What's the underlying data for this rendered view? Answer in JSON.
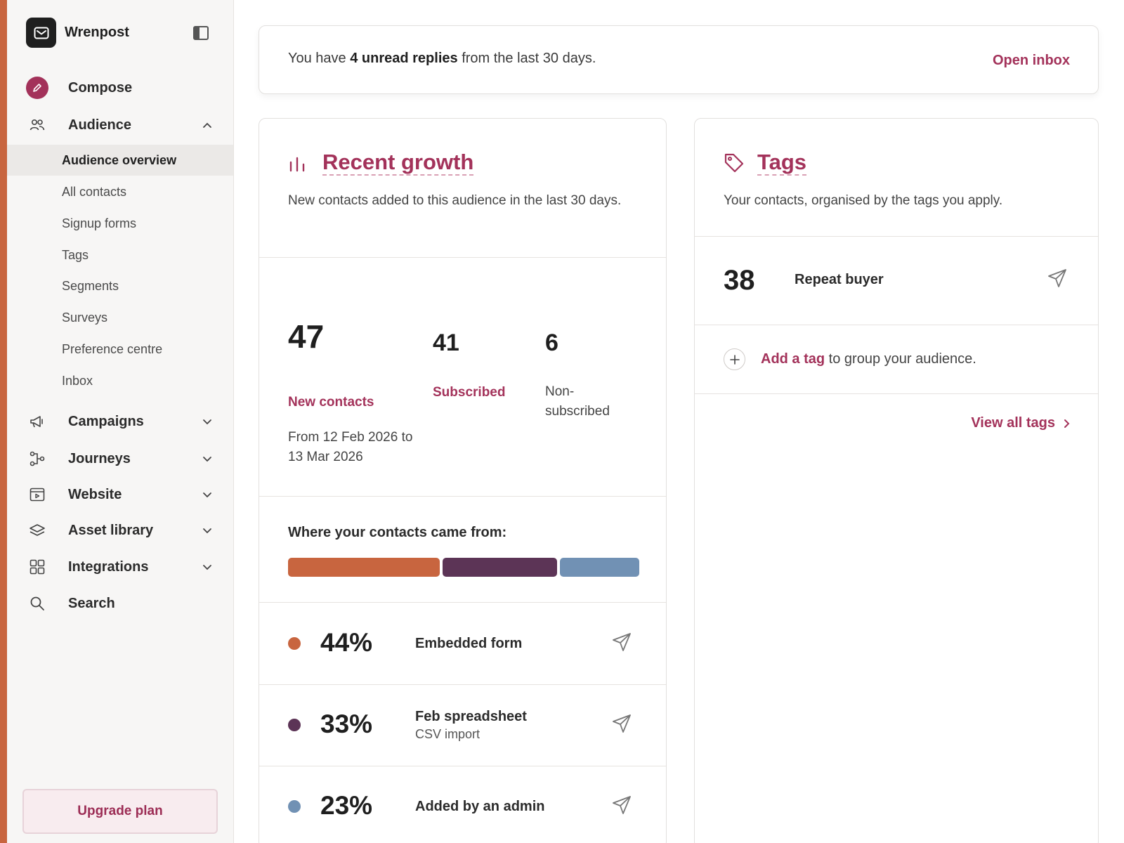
{
  "brand": {
    "name": "Wrenpost"
  },
  "colors": {
    "accent": "#a3325a",
    "strip": "#c8653f",
    "embedded": "#c8653f",
    "spreadsheet": "#5c3456",
    "admin": "#7191b4"
  },
  "sidebar": {
    "compose": "Compose",
    "audience": "Audience",
    "audience_items": [
      "Audience overview",
      "All contacts",
      "Signup forms",
      "Tags",
      "Segments",
      "Surveys",
      "Preference centre",
      "Inbox"
    ],
    "sections": [
      "Campaigns",
      "Journeys",
      "Website",
      "Asset library",
      "Integrations"
    ],
    "search": "Search",
    "upgrade": "Upgrade plan"
  },
  "banner": {
    "prefix": "You have ",
    "highlight": "4 unread replies",
    "suffix": " from the last 30 days.",
    "action": "Open inbox"
  },
  "growth": {
    "title": "Recent growth",
    "description": "New contacts added to this audience in the last 30 days.",
    "new_count": "47",
    "new_label": "New contacts",
    "range_line1": "From 12 Feb 2026 to",
    "range_line2": "13 Mar 2026",
    "subscribed_count": "41",
    "subscribed_label": "Subscribed",
    "non_count": "6",
    "non_label_line1": "Non-",
    "non_label_line2": "subscribed",
    "sources_heading": "Where your contacts came from:",
    "sources": [
      {
        "percent": "44%",
        "share": 44,
        "name": "Embedded form",
        "sub": ""
      },
      {
        "percent": "33%",
        "share": 33,
        "name": "Feb spreadsheet",
        "sub": "CSV import"
      },
      {
        "percent": "23%",
        "share": 23,
        "name": "Added by an admin",
        "sub": ""
      }
    ]
  },
  "tags": {
    "title": "Tags",
    "description": "Your contacts, organised by the tags you apply.",
    "items": [
      {
        "count": "38",
        "name": "Repeat buyer"
      }
    ],
    "add_link": "Add a tag",
    "add_suffix": " to group your audience.",
    "view_all": "View all tags"
  },
  "icons": {
    "brand": "envelope-icon",
    "compose": "pencil-icon",
    "audience": "people-icon",
    "campaigns": "megaphone-icon",
    "journeys": "flow-icon",
    "website": "browser-icon",
    "assets": "layers-icon",
    "integrations": "grid-icon",
    "search": "search-icon",
    "growth": "bar-chart-icon",
    "tags": "tag-icon",
    "send": "send-icon"
  }
}
